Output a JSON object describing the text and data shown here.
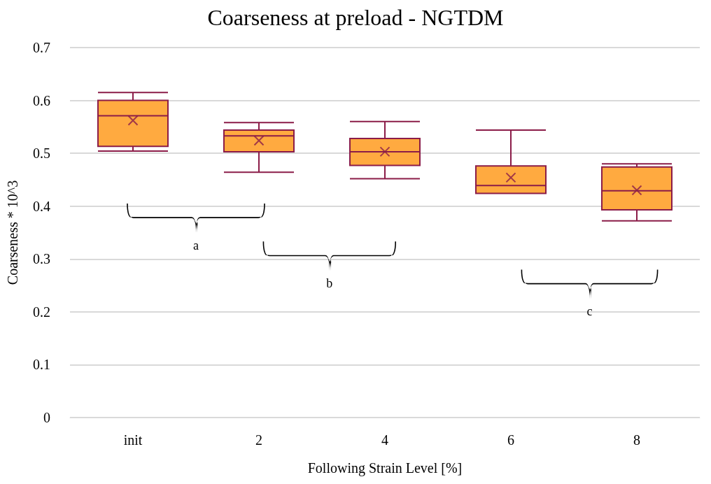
{
  "chart_data": {
    "type": "box",
    "title": "Coarseness at preload - NGTDM",
    "xlabel": "Following Strain Level [%]",
    "ylabel": "Coarseness * 10^3",
    "categories": [
      "init",
      "2",
      "4",
      "6",
      "8"
    ],
    "series": [
      {
        "color": "#ffaa40",
        "boxes": [
          {
            "low": 0.504,
            "q1": 0.513,
            "median": 0.571,
            "q3": 0.6,
            "high": 0.615,
            "mean": 0.562
          },
          {
            "low": 0.464,
            "q1": 0.503,
            "median": 0.533,
            "q3": 0.544,
            "high": 0.558,
            "mean": 0.524
          },
          {
            "low": 0.452,
            "q1": 0.477,
            "median": 0.503,
            "q3": 0.528,
            "high": 0.56,
            "mean": 0.503
          },
          {
            "low": 0.424,
            "q1": 0.424,
            "median": 0.439,
            "q3": 0.476,
            "high": 0.544,
            "mean": 0.454
          },
          {
            "low": 0.372,
            "q1": 0.393,
            "median": 0.429,
            "q3": 0.474,
            "high": 0.48,
            "mean": 0.43
          }
        ]
      }
    ],
    "ylim": [
      0,
      0.7
    ],
    "yticks": [
      0,
      0.1,
      0.2,
      0.3,
      0.4,
      0.5,
      0.6,
      0.7
    ],
    "grid": "y",
    "marker": "cross",
    "annotations": [
      "a",
      "b",
      "c"
    ]
  }
}
